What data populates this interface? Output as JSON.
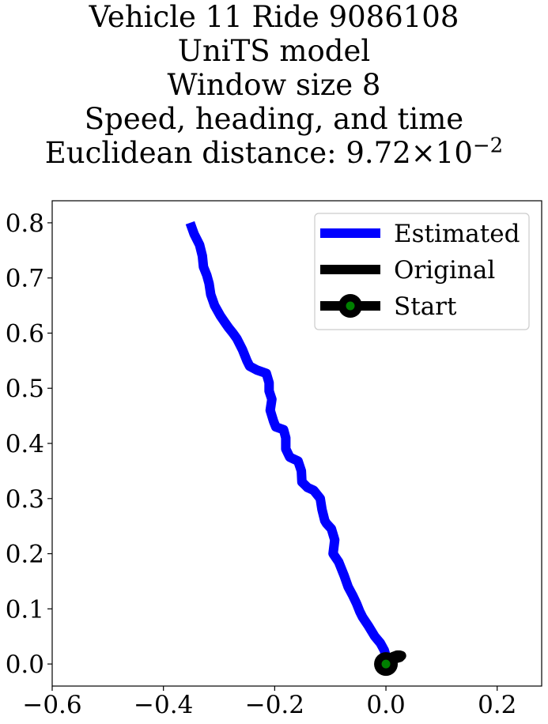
{
  "title_lines": [
    "Vehicle 11 Ride 9086108",
    "UniTS model",
    "Window size 8",
    "Speed, heading, and time"
  ],
  "title_distance": {
    "prefix": "Euclidean distance: ",
    "mantissa": "9.72",
    "times": "×",
    "base": "10",
    "exponent": "−2"
  },
  "chart_data": {
    "type": "line",
    "title": "Vehicle 11 Ride 9086108 / UniTS model / Window size 8 / Speed, heading, and time / Euclidean distance: 9.72×10^-2",
    "xlabel": "",
    "ylabel": "",
    "xlim": [
      -0.6,
      0.28
    ],
    "ylim": [
      -0.04,
      0.84
    ],
    "xticks": [
      -0.6,
      -0.4,
      -0.2,
      0.0,
      0.2
    ],
    "xtick_labels": [
      "−0.6",
      "−0.4",
      "−0.2",
      "0.0",
      "0.2"
    ],
    "yticks": [
      0.0,
      0.1,
      0.2,
      0.3,
      0.4,
      0.5,
      0.6,
      0.7,
      0.8
    ],
    "ytick_labels": [
      "0.0",
      "0.1",
      "0.2",
      "0.3",
      "0.4",
      "0.5",
      "0.6",
      "0.7",
      "0.8"
    ],
    "grid": false,
    "legend_position": "upper right",
    "series": [
      {
        "name": "Estimated",
        "color": "#0000ff",
        "x": [
          -0.352,
          -0.345,
          -0.335,
          -0.33,
          -0.328,
          -0.322,
          -0.318,
          -0.315,
          -0.308,
          -0.298,
          -0.29,
          -0.283,
          -0.275,
          -0.268,
          -0.258,
          -0.25,
          -0.245,
          -0.232,
          -0.215,
          -0.21,
          -0.21,
          -0.205,
          -0.208,
          -0.202,
          -0.198,
          -0.184,
          -0.18,
          -0.18,
          -0.173,
          -0.158,
          -0.152,
          -0.151,
          -0.141,
          -0.13,
          -0.118,
          -0.115,
          -0.11,
          -0.107,
          -0.098,
          -0.092,
          -0.095,
          -0.085,
          -0.075,
          -0.068,
          -0.06,
          -0.053,
          -0.047,
          -0.042,
          -0.032,
          -0.02,
          -0.01,
          -0.003,
          0.0,
          0.002,
          0.0
        ],
        "y": [
          0.8,
          0.78,
          0.76,
          0.74,
          0.72,
          0.705,
          0.69,
          0.67,
          0.65,
          0.632,
          0.62,
          0.61,
          0.6,
          0.59,
          0.57,
          0.55,
          0.54,
          0.533,
          0.527,
          0.51,
          0.495,
          0.48,
          0.46,
          0.44,
          0.43,
          0.425,
          0.41,
          0.39,
          0.375,
          0.368,
          0.35,
          0.33,
          0.32,
          0.315,
          0.3,
          0.28,
          0.26,
          0.255,
          0.245,
          0.225,
          0.2,
          0.185,
          0.16,
          0.14,
          0.125,
          0.11,
          0.095,
          0.085,
          0.07,
          0.05,
          0.038,
          0.025,
          0.015,
          0.005,
          0.0
        ]
      },
      {
        "name": "Original",
        "color": "#000000",
        "x": [
          0.0,
          0.005,
          0.012,
          0.02,
          0.025,
          0.028,
          0.025,
          0.018,
          0.01,
          0.004,
          0.0
        ],
        "y": [
          0.0,
          0.008,
          0.013,
          0.016,
          0.016,
          0.015,
          0.012,
          0.01,
          0.007,
          0.003,
          0.0
        ]
      },
      {
        "name": "Start",
        "color": "#000000",
        "marker_color": "#008000",
        "x": [
          0.0
        ],
        "y": [
          0.0
        ]
      }
    ]
  }
}
